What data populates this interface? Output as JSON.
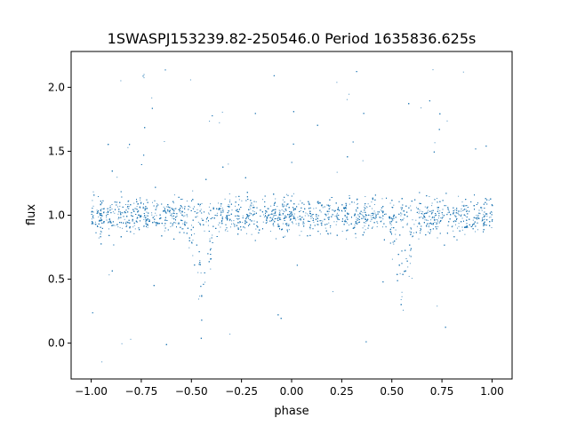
{
  "chart_data": {
    "type": "scatter",
    "title": "1SWASPJ153239.82-250546.0 Period 1635836.625s",
    "xlabel": "phase",
    "ylabel": "flux",
    "xlim": [
      -1.1,
      1.1
    ],
    "ylim": [
      -0.28,
      2.28
    ],
    "x_ticks": [
      -1.0,
      -0.75,
      -0.5,
      -0.25,
      0.0,
      0.25,
      0.5,
      0.75,
      1.0
    ],
    "x_tick_labels": [
      "−1.00",
      "−0.75",
      "−0.50",
      "−0.25",
      "0.00",
      "0.25",
      "0.50",
      "0.75",
      "1.00"
    ],
    "y_ticks": [
      0.0,
      0.5,
      1.0,
      1.5,
      2.0
    ],
    "y_tick_labels": [
      "0.0",
      "0.5",
      "1.0",
      "1.5",
      "2.0"
    ],
    "grid": false,
    "legend": "none",
    "marker_color": "#1f77b4",
    "series": [
      {
        "x_range": [
          -1.0,
          1.0
        ],
        "baseline_flux": 1.0,
        "scatter_band": [
          0.75,
          1.25
        ],
        "dip_phases": [
          -0.45,
          0.55
        ],
        "dip_min_flux": 0.25,
        "max_flux": 2.17,
        "min_flux": -0.17
      }
    ]
  }
}
